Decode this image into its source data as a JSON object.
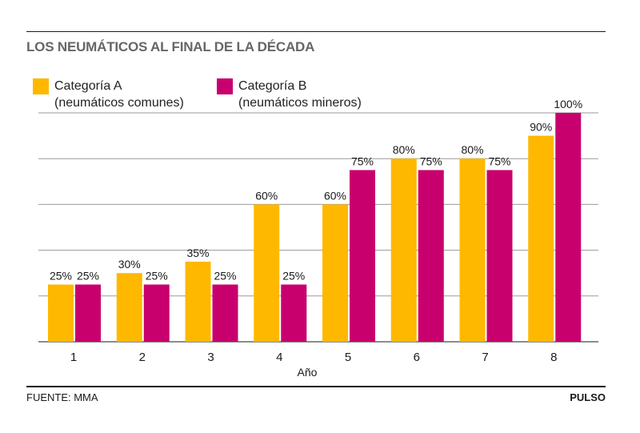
{
  "title": "LOS NEUMÁTICOS AL FINAL DE LA DÉCADA",
  "legend": [
    {
      "line1": "Categoría A",
      "line2": "(neumáticos comunes)",
      "color": "#FFB800"
    },
    {
      "line1": "Categoría B",
      "line2": "(neumáticos mineros)",
      "color": "#C8006E"
    }
  ],
  "chart_data": {
    "type": "bar",
    "title": "LOS NEUMÁTICOS AL FINAL DE LA DÉCADA",
    "xlabel": "Año",
    "ylabel": "",
    "categories": [
      "1",
      "2",
      "3",
      "4",
      "5",
      "6",
      "7",
      "8"
    ],
    "series": [
      {
        "name": "Categoría A (neumáticos comunes)",
        "values": [
          25,
          30,
          35,
          60,
          60,
          80,
          80,
          90
        ],
        "labels": [
          "25%",
          "30%",
          "35%",
          "60%",
          "60%",
          "80%",
          "80%",
          "90%"
        ],
        "color": "#FFB800"
      },
      {
        "name": "Categoría B (neumáticos mineros)",
        "values": [
          25,
          25,
          25,
          25,
          75,
          75,
          75,
          100
        ],
        "labels": [
          "25%",
          "25%",
          "25%",
          "25%",
          "75%",
          "75%",
          "75%",
          "100%"
        ],
        "color": "#C8006E"
      }
    ],
    "ylim": [
      0,
      100
    ],
    "grid": true,
    "legend": "top-left"
  },
  "footer": {
    "source": "FUENTE: MMA",
    "brand": "PULSO"
  }
}
